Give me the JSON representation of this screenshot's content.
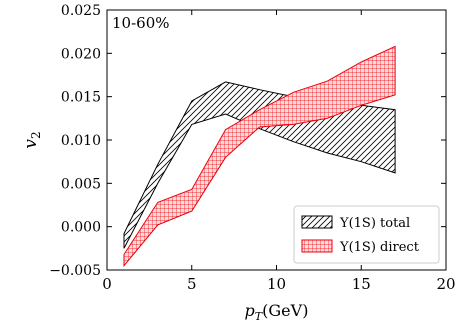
{
  "chart_data": {
    "type": "area",
    "annotation": "10-60%",
    "xlabel": "p_T(GeV)",
    "ylabel": "v_2",
    "xlim": [
      0,
      20
    ],
    "ylim": [
      -0.005,
      0.025
    ],
    "x_ticks": [
      0,
      5,
      10,
      15,
      20
    ],
    "y_ticks": [
      -0.005,
      0.0,
      0.005,
      0.01,
      0.015,
      0.02,
      0.025
    ],
    "y_tick_labels": [
      "−0.005",
      "0.000",
      "0.005",
      "0.010",
      "0.015",
      "0.020",
      "0.025"
    ],
    "grid": false,
    "legend": "bottom-right",
    "series": [
      {
        "name": "Υ(1S) total",
        "color": "#000000",
        "hatch": "diagonal",
        "x": [
          1,
          3,
          5,
          7,
          9,
          11,
          13,
          15,
          17
        ],
        "lower": [
          -0.0025,
          0.005,
          0.0118,
          0.013,
          0.0113,
          0.0098,
          0.0085,
          0.0075,
          0.0062
        ],
        "upper": [
          -0.0008,
          0.0072,
          0.0145,
          0.0167,
          0.0158,
          0.015,
          0.0145,
          0.014,
          0.0135
        ]
      },
      {
        "name": "Υ(1S) direct",
        "color": "#e8000b",
        "hatch": "grid",
        "x": [
          1,
          3,
          5,
          7,
          9,
          11,
          13,
          15,
          17
        ],
        "lower": [
          -0.0045,
          0.0002,
          0.0018,
          0.008,
          0.0115,
          0.0118,
          0.0125,
          0.014,
          0.0152
        ],
        "upper": [
          -0.0032,
          0.0028,
          0.0043,
          0.0112,
          0.0135,
          0.0155,
          0.0168,
          0.019,
          0.0208
        ]
      }
    ]
  }
}
